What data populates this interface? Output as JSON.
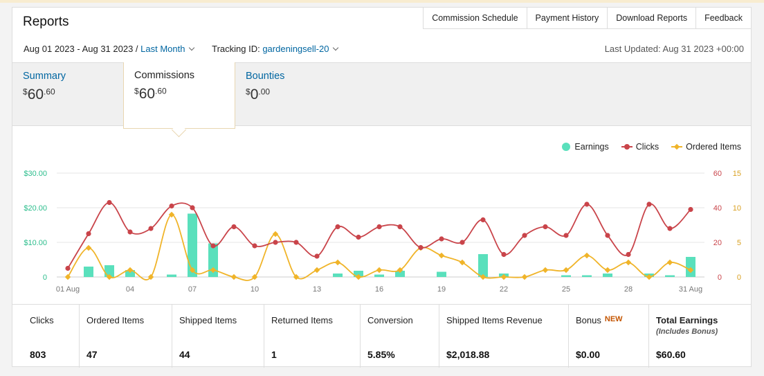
{
  "header": {
    "title": "Reports",
    "tabs": [
      "Commission Schedule",
      "Payment History",
      "Download Reports",
      "Feedback"
    ],
    "date_range": "Aug 01 2023 - Aug 31 2023 /",
    "period_link": "Last Month",
    "tracking_label": "Tracking ID:",
    "tracking_id": "gardeningsell-20",
    "last_updated": "Last Updated: Aug 31 2023 +00:00"
  },
  "summary_tabs": [
    {
      "label": "Summary",
      "currency": "$",
      "dollars": "60",
      "cents": ".60"
    },
    {
      "label": "Commissions",
      "currency": "$",
      "dollars": "60",
      "cents": ".60"
    },
    {
      "label": "Bounties",
      "currency": "$",
      "dollars": "0",
      "cents": ".00"
    }
  ],
  "colors": {
    "earnings": "#5ae0bc",
    "clicks": "#c9444a",
    "ordered": "#f0b429",
    "axis_left": "#2bbd8c",
    "axis_right_clicks": "#c9444a",
    "axis_right_ordered": "#d9a020",
    "link": "#0066a1"
  },
  "chart_data": {
    "type": "bar",
    "x": [
      "01 Aug",
      "02",
      "03",
      "04",
      "05",
      "06",
      "07",
      "08",
      "09",
      "10",
      "11",
      "12",
      "13",
      "14",
      "15",
      "16",
      "17",
      "18",
      "19",
      "20",
      "21",
      "22",
      "23",
      "24",
      "25",
      "26",
      "27",
      "28",
      "29",
      "30",
      "31 Aug"
    ],
    "x_tick_labels": [
      "01 Aug",
      "04",
      "07",
      "10",
      "13",
      "16",
      "19",
      "22",
      "25",
      "28",
      "31 Aug"
    ],
    "series": [
      {
        "name": "Earnings",
        "type": "bar",
        "axis": "left",
        "values": [
          0,
          3.0,
          3.4,
          2.0,
          0,
          0.7,
          18.3,
          9.7,
          0,
          0,
          0,
          0,
          0,
          1.0,
          1.8,
          0.7,
          1.8,
          0,
          1.5,
          0,
          6.6,
          1.0,
          0,
          0,
          0.5,
          0.5,
          1.0,
          0,
          1.0,
          0.5,
          5.8
        ]
      },
      {
        "name": "Clicks",
        "type": "line",
        "axis": "right1",
        "values": [
          5,
          25,
          43,
          26,
          28,
          41,
          40,
          18,
          29,
          18,
          20,
          20,
          12,
          29,
          23,
          29,
          29,
          17,
          22,
          20,
          33,
          13,
          24,
          29,
          24,
          42,
          24,
          13,
          42,
          28,
          39
        ]
      },
      {
        "name": "Ordered Items",
        "type": "line",
        "axis": "right2",
        "values": [
          0,
          4.2,
          0,
          1.0,
          0,
          9.0,
          1.0,
          1.0,
          0,
          0,
          6.2,
          0,
          1.0,
          2.1,
          0,
          1.0,
          1.0,
          4.2,
          3.1,
          2.1,
          0,
          0,
          0,
          1.0,
          1.0,
          3.1,
          1.0,
          2.1,
          0,
          2.1,
          1.0
        ]
      }
    ],
    "y_left": {
      "ticks": [
        "0",
        "$10.00",
        "$20.00",
        "$30.00"
      ],
      "max": 30
    },
    "y_right_clicks": {
      "ticks": [
        "0",
        "20",
        "40",
        "60"
      ],
      "max": 60
    },
    "y_right_ordered": {
      "ticks": [
        "0",
        "5",
        "10",
        "15"
      ],
      "max": 15
    },
    "grid": true,
    "legend_position": "top-right"
  },
  "stats": [
    {
      "label": "Clicks",
      "value": "803"
    },
    {
      "label": "Ordered Items",
      "value": "47"
    },
    {
      "label": "Shipped Items",
      "value": "44"
    },
    {
      "label": "Returned Items",
      "value": "1"
    },
    {
      "label": "Conversion",
      "value": "5.85%"
    },
    {
      "label": "Shipped Items Revenue",
      "value": "$2,018.88"
    },
    {
      "label": "Bonus",
      "badge": "NEW",
      "value": "$0.00"
    },
    {
      "label": "Total Earnings",
      "sublabel": "(Includes Bonus)",
      "value": "$60.60"
    }
  ]
}
